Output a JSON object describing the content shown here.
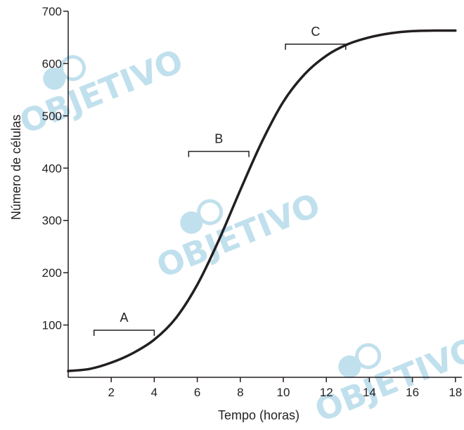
{
  "chart_data": {
    "type": "line",
    "title": "",
    "xlabel": "Tempo (horas)",
    "ylabel": "Número de células",
    "xlim": [
      0,
      18.3
    ],
    "ylim": [
      0,
      700
    ],
    "xticks": [
      2,
      4,
      6,
      8,
      10,
      12,
      14,
      16,
      18
    ],
    "yticks": [
      100,
      200,
      300,
      400,
      500,
      600,
      700
    ],
    "grid": false,
    "series": [
      {
        "x": [
          0,
          1,
          2,
          3,
          4,
          5,
          6,
          7,
          8,
          9,
          10,
          11,
          12,
          13,
          14,
          15,
          16,
          17,
          18
        ],
        "y": [
          12,
          16,
          28,
          46,
          72,
          113,
          177,
          262,
          358,
          450,
          527,
          580,
          615,
          637,
          650,
          658,
          662,
          663,
          663
        ],
        "color": "#231f20"
      }
    ],
    "intervals": [
      {
        "label": "A",
        "x_start": 1.2,
        "x_end": 4.0,
        "y": 90
      },
      {
        "label": "B",
        "x_start": 5.6,
        "x_end": 8.4,
        "y": 432
      },
      {
        "label": "C",
        "x_start": 10.1,
        "x_end": 12.9,
        "y": 637
      }
    ]
  },
  "watermark": {
    "text": "OBJETIVO",
    "color": "#8fc8df"
  }
}
